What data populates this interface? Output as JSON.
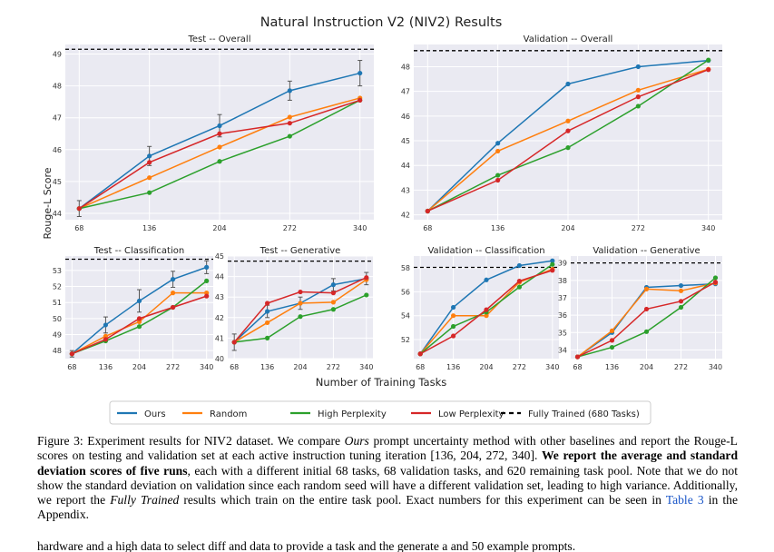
{
  "figure": {
    "title": "Natural Instruction V2 (NIV2) Results",
    "ylabel": "Rouge-L Score",
    "xlabel": "Number of Training Tasks",
    "legend": [
      {
        "label": "Ours",
        "color": "#1f77b4",
        "style": "solid"
      },
      {
        "label": "Random",
        "color": "#ff7f0e",
        "style": "solid"
      },
      {
        "label": "High Perplexity",
        "color": "#2ca02c",
        "style": "solid"
      },
      {
        "label": "Low Perplexity",
        "color": "#d62728",
        "style": "solid"
      },
      {
        "label": "Fully Trained (680 Tasks)",
        "color": "#000000",
        "style": "dashed"
      }
    ]
  },
  "chart_data": [
    {
      "type": "line",
      "title": "Test -- Overall",
      "x": [
        68,
        136,
        204,
        272,
        340
      ],
      "ylim": [
        43.8,
        49.3
      ],
      "yticks": [
        44,
        45,
        46,
        47,
        48,
        49
      ],
      "fully_trained": 49.15,
      "series": [
        {
          "name": "Ours",
          "values": [
            44.15,
            45.8,
            46.75,
            47.85,
            48.4
          ],
          "err": [
            0.25,
            0.3,
            0.35,
            0.3,
            0.4
          ]
        },
        {
          "name": "Random",
          "values": [
            44.15,
            45.12,
            46.08,
            47.02,
            47.62
          ]
        },
        {
          "name": "High Perplexity",
          "values": [
            44.15,
            44.65,
            45.63,
            46.42,
            47.55
          ]
        },
        {
          "name": "Low Perplexity",
          "values": [
            44.15,
            45.6,
            46.5,
            46.83,
            47.55
          ]
        }
      ]
    },
    {
      "type": "line",
      "title": "Validation -- Overall",
      "x": [
        68,
        136,
        204,
        272,
        340
      ],
      "ylim": [
        41.8,
        48.9
      ],
      "yticks": [
        42,
        43,
        44,
        45,
        46,
        47,
        48
      ],
      "fully_trained": 48.65,
      "series": [
        {
          "name": "Ours",
          "values": [
            42.15,
            44.9,
            47.3,
            48.0,
            48.25
          ]
        },
        {
          "name": "Random",
          "values": [
            42.15,
            44.58,
            45.8,
            47.05,
            47.9
          ]
        },
        {
          "name": "High Perplexity",
          "values": [
            42.15,
            43.6,
            44.72,
            46.4,
            48.27
          ]
        },
        {
          "name": "Low Perplexity",
          "values": [
            42.15,
            43.4,
            45.4,
            46.78,
            47.88
          ]
        }
      ]
    },
    {
      "type": "line",
      "title": "Test -- Classification",
      "x": [
        68,
        136,
        204,
        272,
        340
      ],
      "ylim": [
        47.5,
        53.9
      ],
      "yticks": [
        48,
        49,
        50,
        51,
        52,
        53
      ],
      "fully_trained": 53.7,
      "series": [
        {
          "name": "Ours",
          "values": [
            47.8,
            49.6,
            51.1,
            52.45,
            53.2
          ],
          "err": [
            0.2,
            0.5,
            0.7,
            0.5,
            0.4
          ]
        },
        {
          "name": "Random",
          "values": [
            47.8,
            48.9,
            49.8,
            51.6,
            51.6
          ]
        },
        {
          "name": "High Perplexity",
          "values": [
            47.8,
            48.6,
            49.5,
            50.7,
            52.35
          ]
        },
        {
          "name": "Low Perplexity",
          "values": [
            47.8,
            48.7,
            50.0,
            50.7,
            51.4
          ]
        }
      ]
    },
    {
      "type": "line",
      "title": "Test -- Generative",
      "x": [
        68,
        136,
        204,
        272,
        340
      ],
      "ylim": [
        40.0,
        45.0
      ],
      "yticks": [
        40,
        41,
        42,
        43,
        44,
        45
      ],
      "fully_trained": 44.75,
      "series": [
        {
          "name": "Ours",
          "values": [
            40.8,
            42.3,
            42.7,
            43.6,
            43.9
          ],
          "err": [
            0.4,
            0.3,
            0.3,
            0.3,
            0.3
          ]
        },
        {
          "name": "Random",
          "values": [
            40.8,
            41.75,
            42.7,
            42.75,
            43.85
          ]
        },
        {
          "name": "High Perplexity",
          "values": [
            40.8,
            41.0,
            42.05,
            42.4,
            43.1
          ]
        },
        {
          "name": "Low Perplexity",
          "values": [
            40.8,
            42.7,
            43.25,
            43.2,
            43.95
          ]
        }
      ]
    },
    {
      "type": "line",
      "title": "Validation -- Classification",
      "x": [
        68,
        136,
        204,
        272,
        340
      ],
      "ylim": [
        50.4,
        59.0
      ],
      "yticks": [
        52,
        54,
        56,
        58
      ],
      "fully_trained": 58.05,
      "series": [
        {
          "name": "Ours",
          "values": [
            50.8,
            54.7,
            57.0,
            58.2,
            58.6
          ]
        },
        {
          "name": "Random",
          "values": [
            50.8,
            54.0,
            54.0,
            56.8,
            57.9
          ]
        },
        {
          "name": "High Perplexity",
          "values": [
            50.8,
            53.1,
            54.3,
            56.4,
            58.3
          ]
        },
        {
          "name": "Low Perplexity",
          "values": [
            50.8,
            52.3,
            54.5,
            56.9,
            57.8
          ]
        }
      ]
    },
    {
      "type": "line",
      "title": "Validation -- Generative",
      "x": [
        68,
        136,
        204,
        272,
        340
      ],
      "ylim": [
        33.5,
        39.4
      ],
      "yticks": [
        34,
        35,
        36,
        37,
        38,
        39
      ],
      "fully_trained": 39.0,
      "series": [
        {
          "name": "Ours",
          "values": [
            33.6,
            35.0,
            37.6,
            37.7,
            37.8
          ]
        },
        {
          "name": "Random",
          "values": [
            33.6,
            35.1,
            37.5,
            37.4,
            37.85
          ]
        },
        {
          "name": "High Perplexity",
          "values": [
            33.6,
            34.15,
            35.05,
            36.45,
            38.15
          ]
        },
        {
          "name": "Low Perplexity",
          "values": [
            33.6,
            34.55,
            36.35,
            36.8,
            37.9
          ]
        }
      ]
    }
  ],
  "caption": {
    "prefix": "Figure 3: Experiment results for NIV2 dataset. We compare ",
    "ours": "Ours",
    "part1": " prompt uncertainty method with other baselines and report the Rouge-L scores on testing and validation set at each active instruction tuning iteration [136, 204, 272, 340]. ",
    "bold": "We report the average and standard deviation scores of five runs",
    "part2": ", each with a different initial 68 tasks, 68 validation tasks, and 620 remaining task pool. Note that we do not show the standard deviation on validation since each random seed will have a different validation set, leading to high variance. Additionally, we report the ",
    "fully": "Fully Trained",
    "part3": " results which train on the entire task pool. Exact numbers for this experiment can be seen in ",
    "table_ref": "Table 3",
    "part4": " in the Appendix."
  },
  "body_text": "hardware and a high data to select diff and data to provide a task and the generate a and 50 example prompts."
}
